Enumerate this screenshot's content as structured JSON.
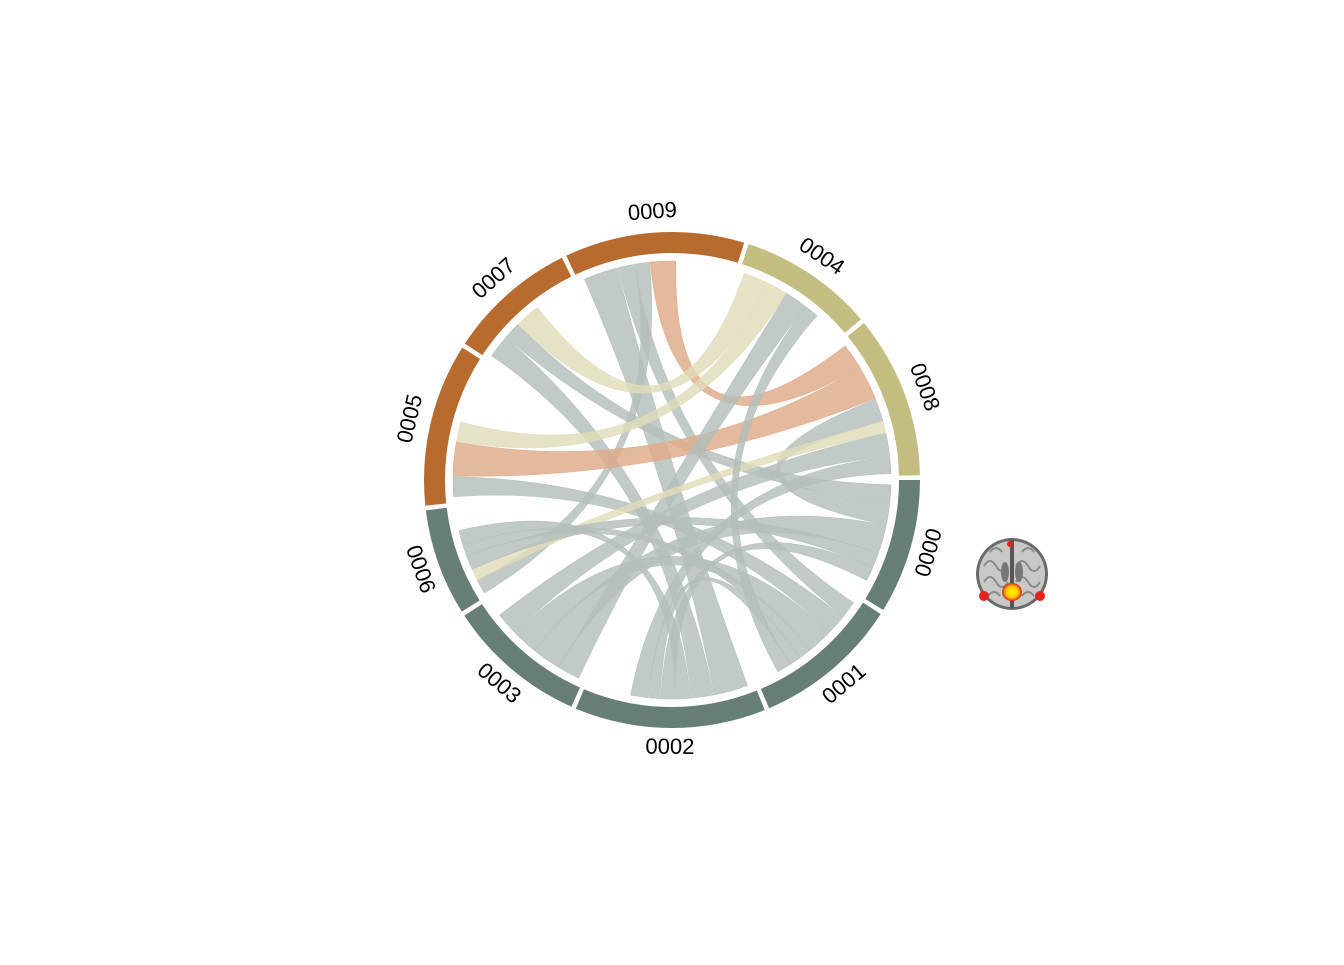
{
  "chart_data": {
    "type": "chord",
    "title": "",
    "colors": {
      "group_a": "#677e76",
      "group_b": "#c3bd82",
      "group_c": "#b76b2e",
      "ribbon_a": "#b3bebb",
      "ribbon_b": "#e1dcb8",
      "ribbon_c": "#deaa88"
    },
    "sectors": [
      {
        "label": "0000",
        "group": "a",
        "weight": 2.4
      },
      {
        "label": "0001",
        "group": "a",
        "weight": 2.6
      },
      {
        "label": "0002",
        "group": "a",
        "weight": 3.4
      },
      {
        "label": "0003",
        "group": "a",
        "weight": 2.5
      },
      {
        "label": "0006",
        "group": "a",
        "weight": 1.9
      },
      {
        "label": "0005",
        "group": "c",
        "weight": 2.9
      },
      {
        "label": "0007",
        "group": "c",
        "weight": 2.3
      },
      {
        "label": "0009",
        "group": "c",
        "weight": 3.2
      },
      {
        "label": "0004",
        "group": "b",
        "weight": 2.4
      },
      {
        "label": "0008",
        "group": "b",
        "weight": 2.9
      }
    ],
    "links": [
      {
        "source": "0009",
        "target": "0002",
        "value": 1.2,
        "group": "a"
      },
      {
        "source": "0009",
        "target": "0001",
        "value": 0.6,
        "group": "a"
      },
      {
        "source": "0009",
        "target": "0006",
        "value": 0.5,
        "group": "a"
      },
      {
        "source": "0009",
        "target": "0008",
        "value": 0.9,
        "group": "c"
      },
      {
        "source": "0007",
        "target": "0002",
        "value": 0.8,
        "group": "a"
      },
      {
        "source": "0007",
        "target": "0000",
        "value": 0.6,
        "group": "a"
      },
      {
        "source": "0007",
        "target": "0004",
        "value": 0.9,
        "group": "b"
      },
      {
        "source": "0005",
        "target": "0001",
        "value": 0.7,
        "group": "a"
      },
      {
        "source": "0005",
        "target": "0008",
        "value": 1.2,
        "group": "c"
      },
      {
        "source": "0005",
        "target": "0004",
        "value": 0.7,
        "group": "b"
      },
      {
        "source": "0004",
        "target": "0003",
        "value": 0.8,
        "group": "a"
      },
      {
        "source": "0008",
        "target": "0000",
        "value": 0.8,
        "group": "a"
      },
      {
        "source": "0008",
        "target": "0006",
        "value": 0.4,
        "group": "b"
      },
      {
        "source": "0000",
        "target": "0003",
        "value": 1.0,
        "group": "a"
      },
      {
        "source": "0000",
        "target": "0006",
        "value": 0.5,
        "group": "a"
      },
      {
        "source": "0001",
        "target": "0003",
        "value": 0.9,
        "group": "a"
      },
      {
        "source": "0001",
        "target": "0006",
        "value": 0.4,
        "group": "a"
      },
      {
        "source": "0002",
        "target": "0006",
        "value": 0.5,
        "group": "a"
      },
      {
        "source": "0002",
        "target": "0000",
        "value": 0.5,
        "group": "a"
      },
      {
        "source": "0002",
        "target": "0001",
        "value": 0.4,
        "group": "a"
      },
      {
        "source": "0003",
        "target": "0008",
        "value": 0.8,
        "group": "a"
      },
      {
        "source": "0002",
        "target": "0008",
        "value": 0.6,
        "group": "a"
      },
      {
        "source": "0001",
        "target": "0004",
        "value": 0.5,
        "group": "a"
      }
    ]
  },
  "inset": {
    "icon": "brain-axial-slice-icon",
    "colors": {
      "tissue": "#8f8f8f",
      "activation_low": "#e8201a",
      "activation_high": "#ffe800"
    }
  }
}
